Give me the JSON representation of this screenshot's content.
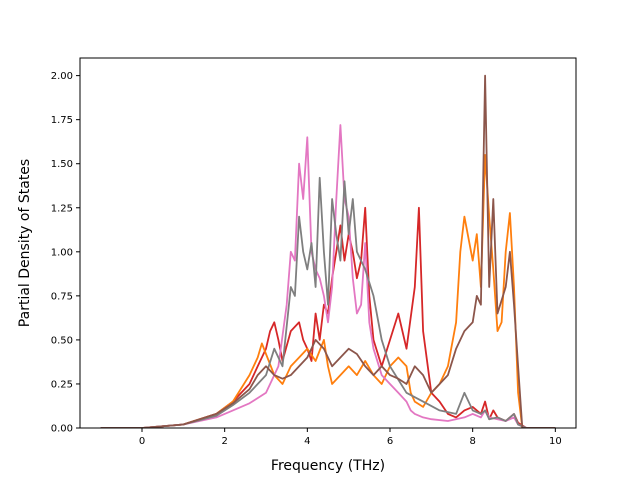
{
  "chart_data": {
    "type": "line",
    "title": "",
    "xlabel": "Frequency (THz)",
    "ylabel": "Partial Density of States",
    "xlim": [
      -1.5,
      10.5
    ],
    "ylim": [
      0,
      2.1
    ],
    "xticks": [
      0,
      2,
      4,
      6,
      8,
      10
    ],
    "xtick_labels": [
      "0",
      "2",
      "4",
      "6",
      "8",
      "10"
    ],
    "yticks": [
      0,
      0.25,
      0.5,
      0.75,
      1.0,
      1.25,
      1.5,
      1.75,
      2.0
    ],
    "ytick_labels": [
      "0.00",
      "0.25",
      "0.50",
      "0.75",
      "1.00",
      "1.25",
      "1.50",
      "1.75",
      "2.00"
    ],
    "grid": false,
    "legend": "none",
    "series": [
      {
        "color": "#d62728",
        "x": [
          -1.0,
          0.0,
          1.0,
          1.8,
          2.2,
          2.6,
          2.8,
          3.0,
          3.1,
          3.2,
          3.3,
          3.4,
          3.6,
          3.8,
          3.9,
          4.0,
          4.1,
          4.2,
          4.3,
          4.4,
          4.5,
          4.6,
          4.7,
          4.8,
          4.9,
          5.0,
          5.1,
          5.2,
          5.3,
          5.4,
          5.5,
          5.6,
          5.8,
          6.0,
          6.2,
          6.4,
          6.6,
          6.7,
          6.8,
          7.0,
          7.2,
          7.4,
          7.6,
          7.8,
          8.0,
          8.2,
          8.3,
          8.4,
          8.5,
          8.6,
          8.8,
          9.0,
          9.1,
          9.3,
          10.0
        ],
        "y": [
          0.0,
          0.0,
          0.02,
          0.08,
          0.15,
          0.25,
          0.35,
          0.45,
          0.55,
          0.6,
          0.5,
          0.38,
          0.55,
          0.6,
          0.5,
          0.45,
          0.38,
          0.65,
          0.5,
          0.7,
          0.65,
          0.85,
          1.0,
          1.15,
          0.95,
          1.1,
          1.0,
          0.85,
          0.95,
          1.25,
          0.75,
          0.5,
          0.35,
          0.5,
          0.65,
          0.45,
          0.8,
          1.25,
          0.55,
          0.2,
          0.15,
          0.08,
          0.06,
          0.1,
          0.12,
          0.08,
          0.15,
          0.05,
          0.1,
          0.06,
          0.04,
          0.08,
          0.03,
          0.0,
          0.0
        ]
      },
      {
        "color": "#ff7f0e",
        "x": [
          -1.0,
          0.0,
          1.0,
          1.8,
          2.2,
          2.6,
          2.8,
          2.9,
          3.0,
          3.2,
          3.4,
          3.6,
          3.8,
          4.0,
          4.2,
          4.4,
          4.5,
          4.6,
          4.8,
          5.0,
          5.2,
          5.4,
          5.6,
          5.8,
          6.0,
          6.2,
          6.4,
          6.5,
          6.6,
          6.8,
          7.0,
          7.2,
          7.4,
          7.6,
          7.7,
          7.8,
          8.0,
          8.1,
          8.2,
          8.3,
          8.4,
          8.5,
          8.6,
          8.7,
          8.8,
          8.9,
          9.0,
          9.1,
          9.2,
          10.0
        ],
        "y": [
          0.0,
          0.0,
          0.02,
          0.08,
          0.15,
          0.3,
          0.4,
          0.48,
          0.42,
          0.3,
          0.25,
          0.35,
          0.4,
          0.45,
          0.38,
          0.5,
          0.35,
          0.25,
          0.3,
          0.35,
          0.3,
          0.38,
          0.3,
          0.25,
          0.35,
          0.4,
          0.35,
          0.2,
          0.15,
          0.12,
          0.2,
          0.25,
          0.35,
          0.6,
          1.0,
          1.2,
          0.95,
          1.1,
          0.8,
          1.55,
          1.2,
          0.9,
          0.55,
          0.6,
          1.0,
          1.22,
          0.8,
          0.2,
          0.0,
          0.0
        ]
      },
      {
        "color": "#e377c2",
        "x": [
          -1.0,
          0.0,
          1.0,
          1.8,
          2.2,
          2.6,
          3.0,
          3.3,
          3.5,
          3.6,
          3.7,
          3.8,
          3.9,
          4.0,
          4.1,
          4.2,
          4.3,
          4.4,
          4.5,
          4.6,
          4.7,
          4.8,
          4.9,
          5.0,
          5.1,
          5.2,
          5.3,
          5.4,
          5.5,
          5.6,
          5.8,
          6.0,
          6.2,
          6.4,
          6.5,
          6.6,
          6.8,
          7.0,
          7.4,
          7.8,
          8.0,
          8.2,
          8.3,
          8.4,
          8.6,
          8.8,
          9.0,
          9.1,
          9.3,
          10.0
        ],
        "y": [
          0.0,
          0.0,
          0.02,
          0.06,
          0.1,
          0.14,
          0.2,
          0.35,
          0.7,
          1.0,
          0.95,
          1.5,
          1.3,
          1.65,
          1.0,
          0.9,
          0.85,
          0.75,
          0.6,
          0.8,
          1.3,
          1.72,
          1.3,
          1.2,
          0.85,
          0.65,
          0.7,
          1.05,
          0.6,
          0.45,
          0.3,
          0.25,
          0.2,
          0.15,
          0.1,
          0.08,
          0.06,
          0.05,
          0.04,
          0.06,
          0.08,
          0.06,
          0.1,
          0.06,
          0.05,
          0.04,
          0.06,
          0.02,
          0.0,
          0.0
        ]
      },
      {
        "color": "#7f7f7f",
        "x": [
          -1.0,
          0.0,
          1.0,
          1.8,
          2.2,
          2.6,
          3.0,
          3.2,
          3.4,
          3.6,
          3.7,
          3.8,
          3.9,
          4.0,
          4.1,
          4.2,
          4.3,
          4.4,
          4.5,
          4.6,
          4.7,
          4.8,
          4.9,
          5.0,
          5.1,
          5.2,
          5.4,
          5.6,
          5.8,
          6.0,
          6.4,
          6.8,
          7.2,
          7.6,
          7.8,
          8.0,
          8.2,
          8.3,
          8.4,
          8.6,
          8.8,
          9.0,
          9.1,
          9.3,
          10.0
        ],
        "y": [
          0.0,
          0.0,
          0.02,
          0.07,
          0.13,
          0.2,
          0.3,
          0.45,
          0.35,
          0.8,
          0.75,
          1.2,
          1.0,
          0.9,
          1.05,
          0.8,
          1.42,
          1.0,
          0.7,
          1.3,
          1.1,
          0.95,
          1.4,
          1.1,
          1.3,
          1.0,
          0.9,
          0.75,
          0.5,
          0.35,
          0.2,
          0.15,
          0.1,
          0.08,
          0.2,
          0.1,
          0.08,
          0.1,
          0.05,
          0.06,
          0.04,
          0.08,
          0.02,
          0.0,
          0.0
        ]
      },
      {
        "color": "#8c564b",
        "x": [
          -1.0,
          0.0,
          1.0,
          1.8,
          2.2,
          2.6,
          2.8,
          3.0,
          3.2,
          3.4,
          3.6,
          3.8,
          4.0,
          4.2,
          4.4,
          4.6,
          4.8,
          5.0,
          5.2,
          5.4,
          5.6,
          5.8,
          6.0,
          6.2,
          6.4,
          6.6,
          6.8,
          7.0,
          7.2,
          7.4,
          7.6,
          7.8,
          8.0,
          8.1,
          8.2,
          8.3,
          8.4,
          8.5,
          8.6,
          8.8,
          8.9,
          9.0,
          9.1,
          9.2,
          10.0
        ],
        "y": [
          0.0,
          0.0,
          0.02,
          0.08,
          0.14,
          0.22,
          0.3,
          0.35,
          0.3,
          0.28,
          0.3,
          0.35,
          0.4,
          0.5,
          0.45,
          0.35,
          0.4,
          0.45,
          0.42,
          0.35,
          0.3,
          0.35,
          0.3,
          0.28,
          0.25,
          0.35,
          0.3,
          0.2,
          0.25,
          0.3,
          0.45,
          0.55,
          0.6,
          0.75,
          0.7,
          2.0,
          0.8,
          1.3,
          0.65,
          0.8,
          1.0,
          0.7,
          0.35,
          0.0,
          0.0
        ]
      }
    ]
  }
}
